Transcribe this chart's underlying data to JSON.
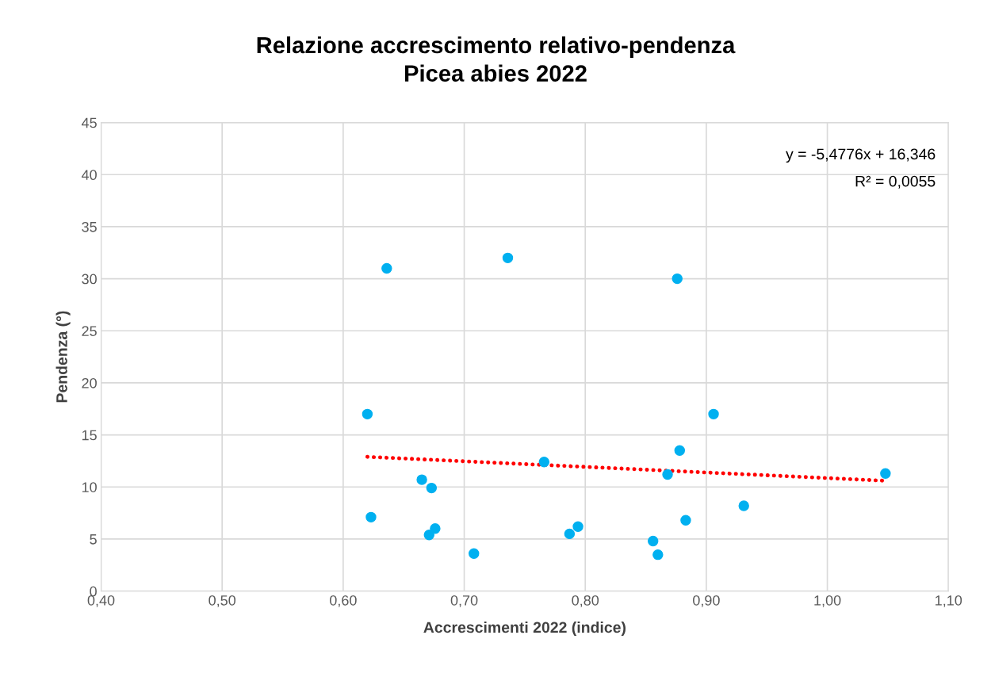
{
  "chart_data": {
    "type": "scatter",
    "title": "Relazione accrescimento relativo-pendenza\nPicea abies 2022",
    "xlabel": "Accrescimenti 2022 (indice)",
    "ylabel": "Pendenza (°)",
    "series": [
      {
        "color": "#00b0f0",
        "marker": "circle",
        "x": [
          0.636,
          0.736,
          0.876,
          0.62,
          0.906,
          0.878,
          0.766,
          0.868,
          1.048,
          0.665,
          0.673,
          0.931,
          0.623,
          0.883,
          0.794,
          0.676,
          0.787,
          0.671,
          0.856,
          0.708,
          0.86
        ],
        "values": [
          31,
          32,
          30,
          17,
          17,
          13.5,
          12.4,
          11.2,
          11.3,
          10.7,
          9.9,
          8.2,
          7.1,
          6.8,
          6.2,
          6.0,
          5.5,
          5.4,
          4.8,
          3.6,
          3.5
        ]
      },
      {
        "type": "line",
        "color": "#ff0000",
        "line_style": "dotted",
        "x": [
          0.62,
          1.048
        ],
        "values": [
          12.9,
          10.6
        ]
      }
    ],
    "annotations": [
      "y = -5,4776x + 16,346",
      "R² = 0,0055"
    ],
    "xlim": [
      0.4,
      1.1
    ],
    "xticks": [
      {
        "value": 0.4,
        "label": "0,40"
      },
      {
        "value": 0.5,
        "label": "0,50"
      },
      {
        "value": 0.6,
        "label": "0,60"
      },
      {
        "value": 0.7,
        "label": "0,70"
      },
      {
        "value": 0.8,
        "label": "0,80"
      },
      {
        "value": 0.9,
        "label": "0,90"
      },
      {
        "value": 1.0,
        "label": "1,00"
      },
      {
        "value": 1.1,
        "label": "1,10"
      }
    ],
    "ylim": [
      0,
      45
    ],
    "yticks": [
      0,
      5,
      10,
      15,
      20,
      25,
      30,
      35,
      40,
      45
    ],
    "grid": true
  }
}
